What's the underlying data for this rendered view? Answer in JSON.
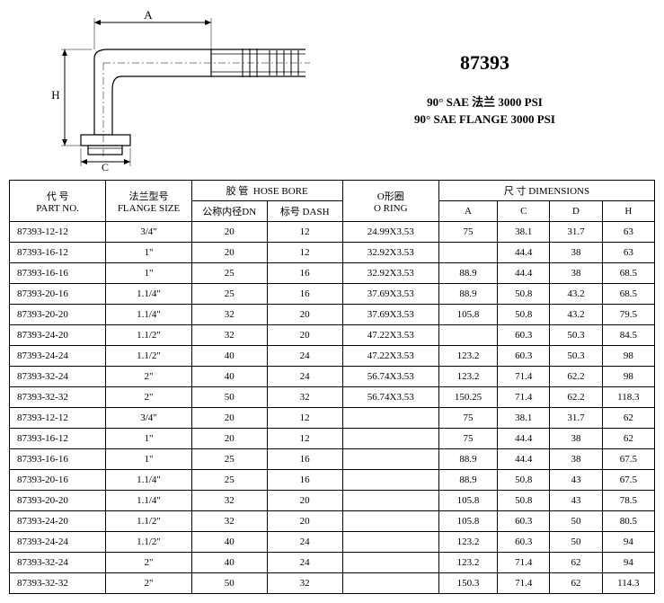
{
  "model": "87393",
  "desc_zh": "90°  SAE 法兰 3000 PSI",
  "desc_en": "90°  SAE FLANGE 3000 PSI",
  "dim_labels": {
    "A": "A",
    "H": "H",
    "C": "C"
  },
  "headers": {
    "partno_zh": "代 号",
    "partno_en": "PART NO.",
    "flange_zh": "法兰型号",
    "flange_en": "FLANGE SIZE",
    "hose_zh": "胶 管",
    "hose_en": "HOSE BORE",
    "dn_zh": "公称内径DN",
    "dash_zh": "标号 DASH",
    "oring_zh": "O形圈",
    "oring_en": "O RING",
    "dims_zh": "尺 寸",
    "dims_en": "DIMENSIONS",
    "A": "A",
    "C": "C",
    "D": "D",
    "H": "H"
  },
  "rows": [
    {
      "pn": "87393-12-12",
      "fs": "3/4\"",
      "dn": "20",
      "dash": "12",
      "or": "24.99X3.53",
      "a": "75",
      "c": "38.1",
      "d": "31.7",
      "h": "63"
    },
    {
      "pn": "87393-16-12",
      "fs": "1\"",
      "dn": "20",
      "dash": "12",
      "or": "32.92X3.53",
      "a": "",
      "c": "44.4",
      "d": "38",
      "h": "63"
    },
    {
      "pn": "87393-16-16",
      "fs": "1\"",
      "dn": "25",
      "dash": "16",
      "or": "32.92X3.53",
      "a": "88.9",
      "c": "44.4",
      "d": "38",
      "h": "68.5"
    },
    {
      "pn": "87393-20-16",
      "fs": "1.1/4\"",
      "dn": "25",
      "dash": "16",
      "or": "37.69X3.53",
      "a": "88.9",
      "c": "50.8",
      "d": "43.2",
      "h": "68.5"
    },
    {
      "pn": "87393-20-20",
      "fs": "1.1/4\"",
      "dn": "32",
      "dash": "20",
      "or": "37.69X3.53",
      "a": "105.8",
      "c": "50.8",
      "d": "43.2",
      "h": "79.5"
    },
    {
      "pn": "87393-24-20",
      "fs": "1.1/2\"",
      "dn": "32",
      "dash": "20",
      "or": "47.22X3.53",
      "a": "",
      "c": "60.3",
      "d": "50.3",
      "h": "84.5"
    },
    {
      "pn": "87393-24-24",
      "fs": "1.1/2\"",
      "dn": "40",
      "dash": "24",
      "or": "47.22X3.53",
      "a": "123.2",
      "c": "60.3",
      "d": "50.3",
      "h": "98"
    },
    {
      "pn": "87393-32-24",
      "fs": "2\"",
      "dn": "40",
      "dash": "24",
      "or": "56.74X3.53",
      "a": "123.2",
      "c": "71.4",
      "d": "62.2",
      "h": "98"
    },
    {
      "pn": "87393-32-32",
      "fs": "2\"",
      "dn": "50",
      "dash": "32",
      "or": "56.74X3.53",
      "a": "150.25",
      "c": "71.4",
      "d": "62.2",
      "h": "118.3"
    },
    {
      "pn": "87393-12-12",
      "fs": "3/4\"",
      "dn": "20",
      "dash": "12",
      "or": "",
      "a": "75",
      "c": "38.1",
      "d": "31.7",
      "h": "62"
    },
    {
      "pn": "87393-16-12",
      "fs": "1\"",
      "dn": "20",
      "dash": "12",
      "or": "",
      "a": "75",
      "c": "44.4",
      "d": "38",
      "h": "62"
    },
    {
      "pn": "87393-16-16",
      "fs": "1\"",
      "dn": "25",
      "dash": "16",
      "or": "",
      "a": "88.9",
      "c": "44.4",
      "d": "38",
      "h": "67.5"
    },
    {
      "pn": "87393-20-16",
      "fs": "1.1/4\"",
      "dn": "25",
      "dash": "16",
      "or": "",
      "a": "88.9",
      "c": "50.8",
      "d": "43",
      "h": "67.5"
    },
    {
      "pn": "87393-20-20",
      "fs": "1.1/4\"",
      "dn": "32",
      "dash": "20",
      "or": "",
      "a": "105.8",
      "c": "50.8",
      "d": "43",
      "h": "78.5"
    },
    {
      "pn": "87393-24-20",
      "fs": "1.1/2\"",
      "dn": "32",
      "dash": "20",
      "or": "",
      "a": "105.8",
      "c": "60.3",
      "d": "50",
      "h": "80.5"
    },
    {
      "pn": "87393-24-24",
      "fs": "1.1/2\"",
      "dn": "40",
      "dash": "24",
      "or": "",
      "a": "123.2",
      "c": "60.3",
      "d": "50",
      "h": "94"
    },
    {
      "pn": "87393-32-24",
      "fs": "2\"",
      "dn": "40",
      "dash": "24",
      "or": "",
      "a": "123.2",
      "c": "71.4",
      "d": "62",
      "h": "94"
    },
    {
      "pn": "87393-32-32",
      "fs": "2\"",
      "dn": "50",
      "dash": "32",
      "or": "",
      "a": "150.3",
      "c": "71.4",
      "d": "62",
      "h": "114.3"
    }
  ],
  "col_widths": {
    "pn": 90,
    "fs": 80,
    "dn": 70,
    "dash": 70,
    "or": 90,
    "a": 55,
    "c": 50,
    "d": 50,
    "h": 50
  }
}
